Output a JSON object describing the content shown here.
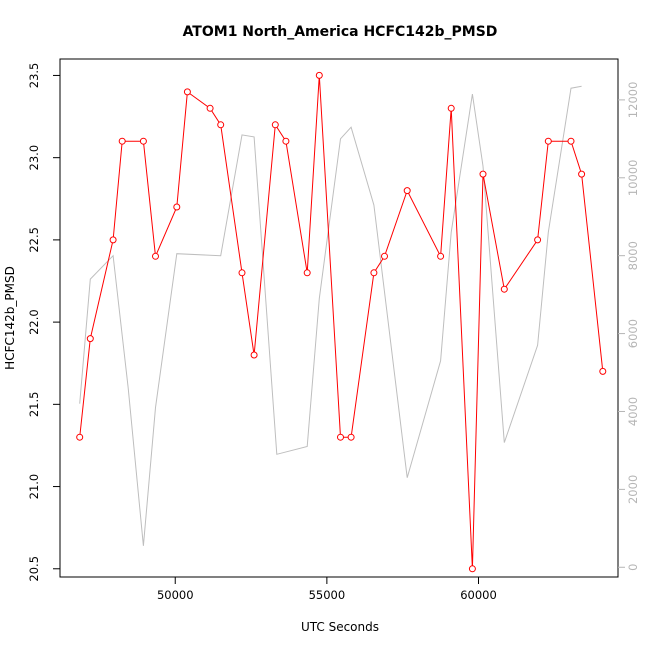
{
  "chart_data": {
    "type": "line",
    "title": "ATOM1 North_America HCFC142b_PMSD",
    "xlabel": "UTC Seconds",
    "ylabel": "HCFC142b_PMSD",
    "xlim": [
      46200,
      64600
    ],
    "ylim": [
      20.45,
      23.6
    ],
    "y2lim": [
      -250,
      13050
    ],
    "x_ticks": [
      50000,
      55000,
      60000
    ],
    "x_tick_labels": [
      "50000",
      "55000",
      "60000"
    ],
    "y_ticks": [
      20.5,
      21.0,
      21.5,
      22.0,
      22.5,
      23.0,
      23.5
    ],
    "y_tick_labels": [
      "20.5",
      "21.0",
      "21.5",
      "22.0",
      "22.5",
      "23.0",
      "23.5"
    ],
    "y2_ticks": [
      0,
      2000,
      4000,
      6000,
      8000,
      10000,
      12000
    ],
    "y2_tick_labels": [
      "0",
      "2000",
      "4000",
      "6000",
      "8000",
      "10000",
      "12000"
    ],
    "grid": false,
    "series": [
      {
        "axis": "left",
        "color": "#ff0000",
        "marker": "open-circle",
        "x": [
          46850,
          47200,
          47950,
          48250,
          48950,
          49350,
          50050,
          50400,
          51150,
          51500,
          52200,
          52600,
          53300,
          53650,
          54350,
          54750,
          55450,
          55800,
          56550,
          56900,
          57650,
          58750,
          59100,
          59800,
          60150,
          60850,
          61950,
          62300,
          63050,
          63400,
          64100
        ],
        "values": [
          21.3,
          21.9,
          22.5,
          23.1,
          23.1,
          22.4,
          22.7,
          23.4,
          23.3,
          23.2,
          22.3,
          21.8,
          23.2,
          23.1,
          22.3,
          23.5,
          21.3,
          21.3,
          22.3,
          22.4,
          22.8,
          22.4,
          23.3,
          20.5,
          22.9,
          22.2,
          22.5,
          23.1,
          23.1,
          22.9,
          21.7
        ]
      },
      {
        "axis": "right",
        "color": "#bebebe",
        "marker": "none",
        "x": [
          46850,
          47200,
          47950,
          48450,
          48950,
          49350,
          50050,
          51500,
          52200,
          52600,
          53350,
          54350,
          54750,
          55450,
          55800,
          56550,
          57650,
          58750,
          59100,
          59800,
          60150,
          60850,
          61950,
          62300,
          63050,
          63400
        ],
        "values": [
          4200,
          7400,
          8000,
          4600,
          550,
          4100,
          8050,
          8000,
          11100,
          11050,
          2900,
          3100,
          6900,
          11000,
          11300,
          9300,
          2300,
          5300,
          8600,
          12150,
          10300,
          3200,
          5700,
          8600,
          12300,
          12350
        ]
      }
    ]
  }
}
